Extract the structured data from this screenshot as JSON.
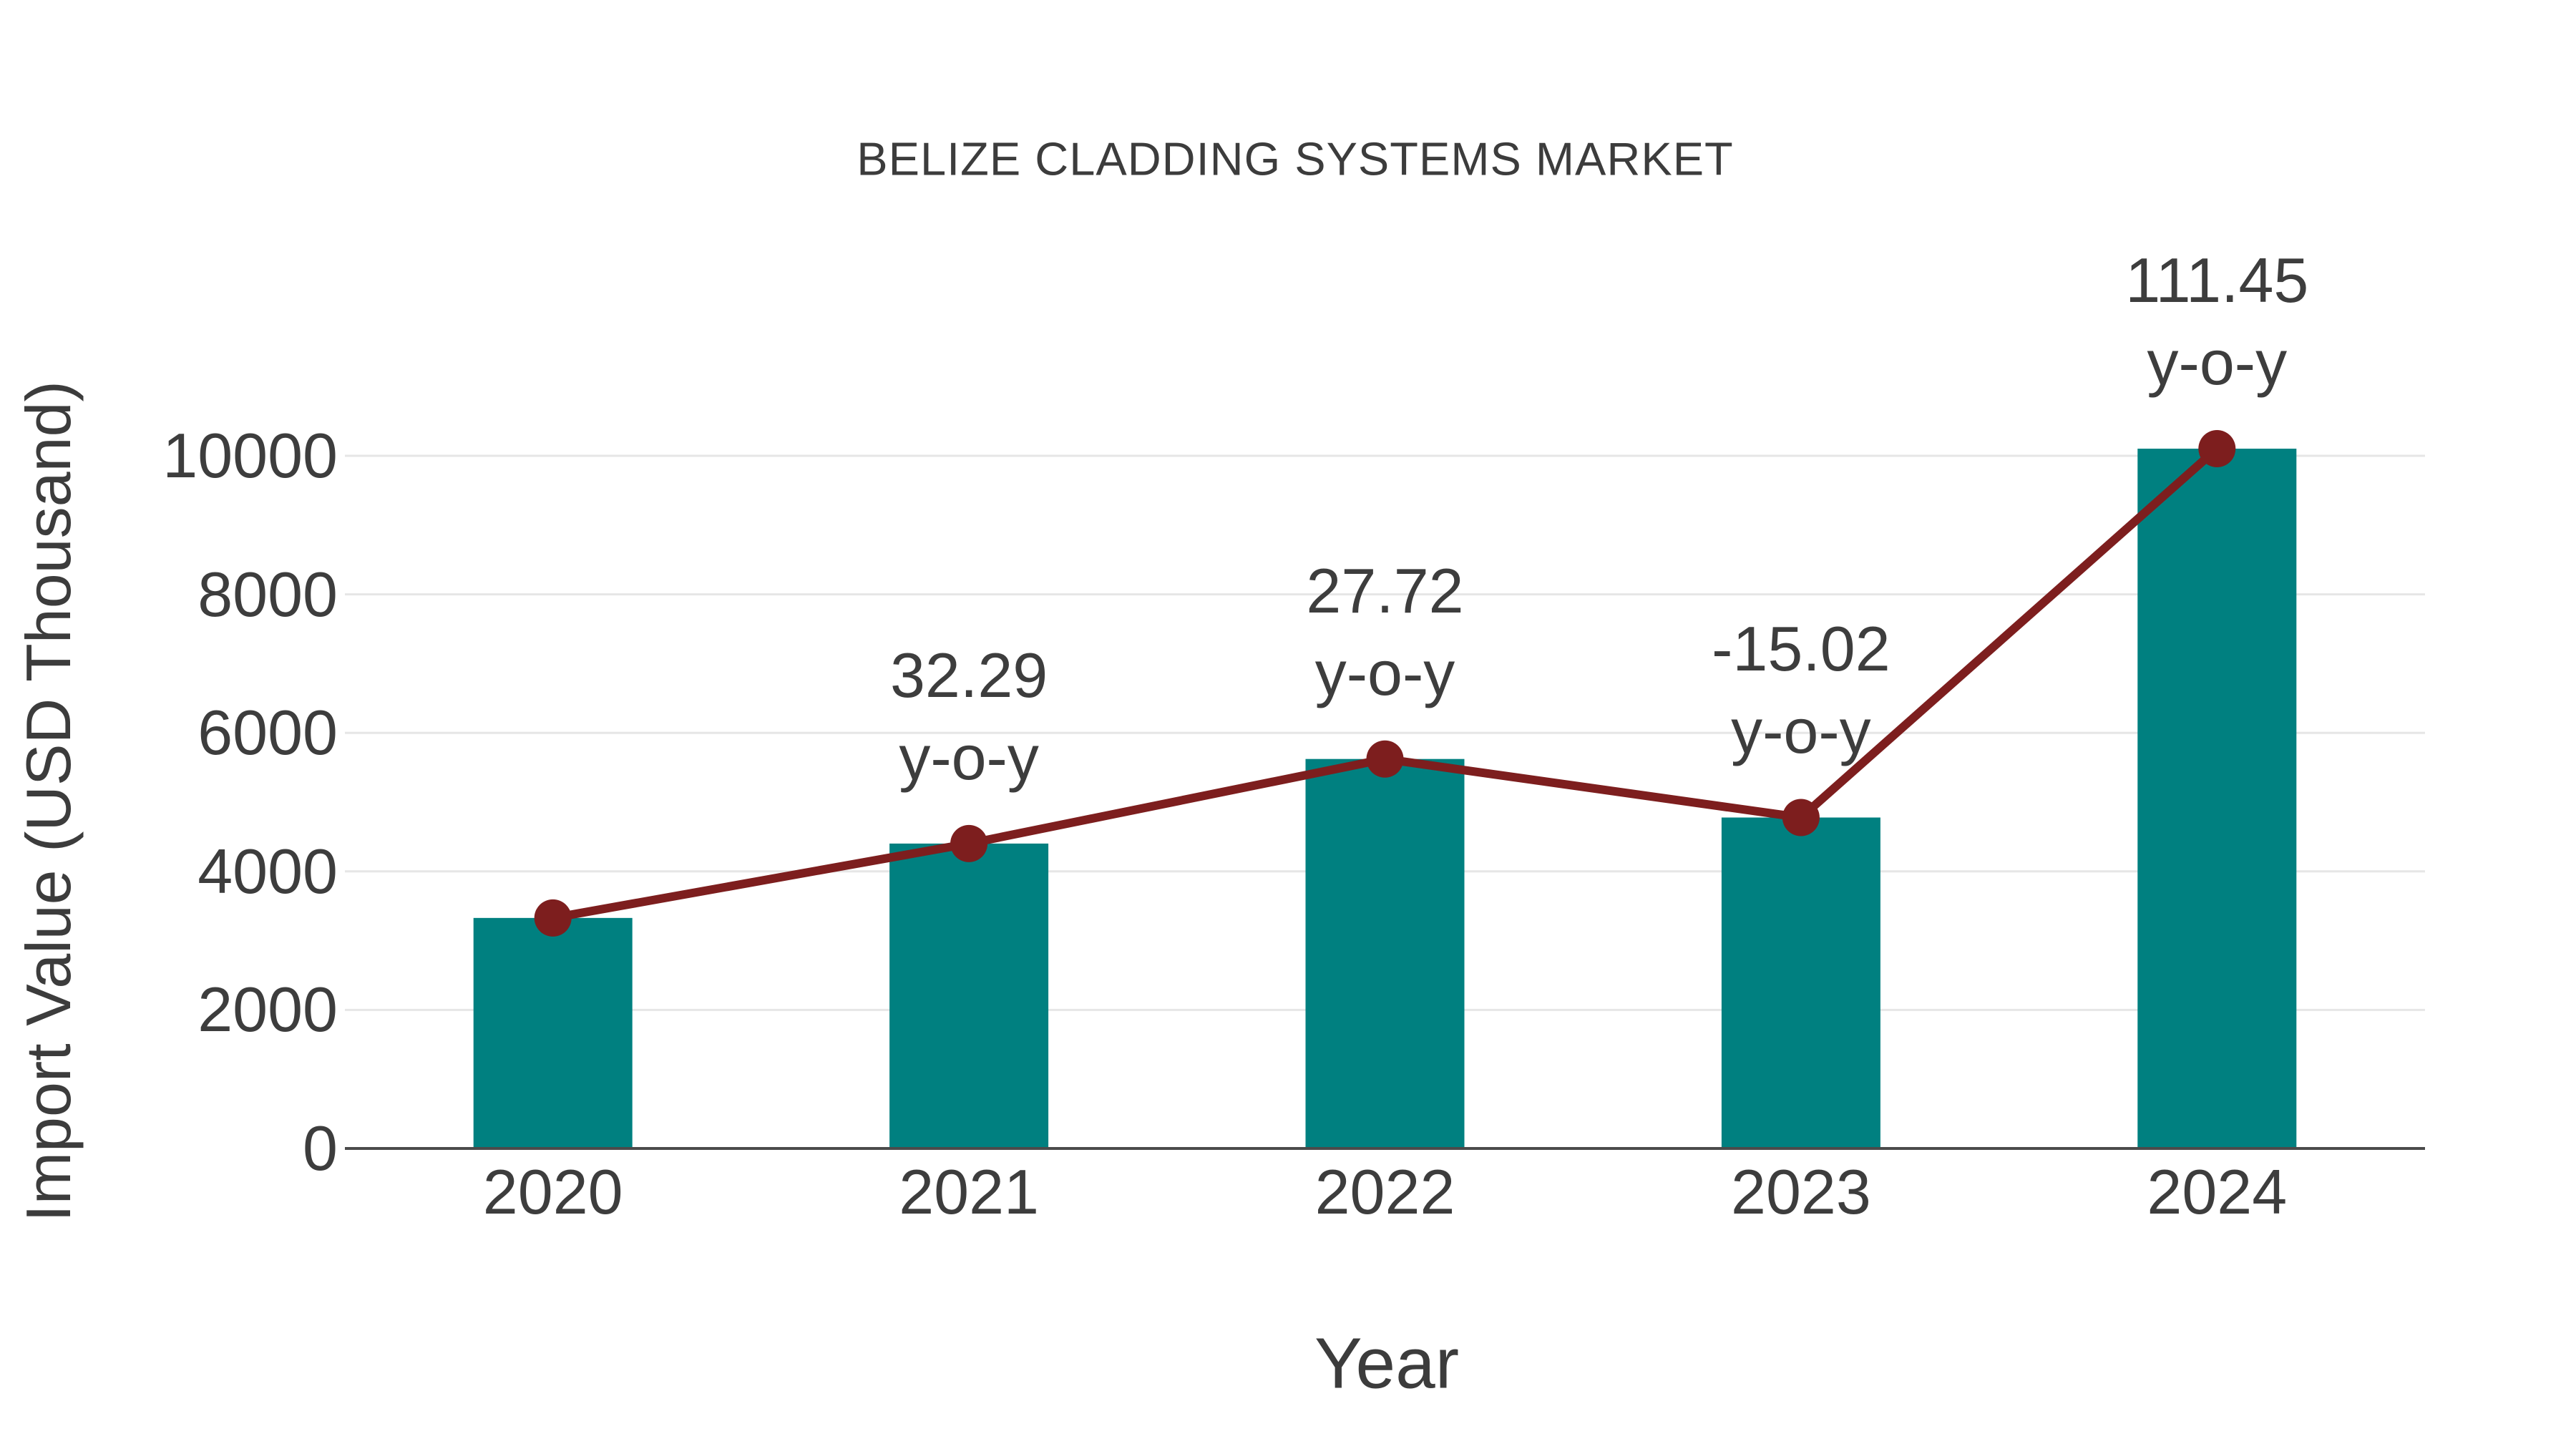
{
  "title": "BELIZE CLADDING SYSTEMS MARKET",
  "colors": {
    "bar": "#008080",
    "line": "#7d1e1e",
    "marker": "#7d1e1e",
    "text": "#3d3d3d",
    "grid": "#e6e6e6",
    "axis": "#4b4b4b",
    "background": "#ffffff"
  },
  "chart_data": {
    "type": "bar",
    "title": "BELIZE CLADDING SYSTEMS MARKET",
    "xlabel": "Year",
    "ylabel": "Import Value (USD Thousand)",
    "categories": [
      "2020",
      "2021",
      "2022",
      "2023",
      "2024"
    ],
    "series": [
      {
        "name": "Import Value",
        "type": "bar",
        "values": [
          3328,
          4402,
          5623,
          4778,
          10103
        ]
      },
      {
        "name": "y-o-y trend",
        "type": "line",
        "values": [
          3328,
          4402,
          5623,
          4778,
          10103
        ]
      }
    ],
    "annotations": [
      {
        "category": "2021",
        "line1": "32.29",
        "line2": "y-o-y"
      },
      {
        "category": "2022",
        "line1": "27.72",
        "line2": "y-o-y"
      },
      {
        "category": "2023",
        "line1": "-15.02",
        "line2": "y-o-y"
      },
      {
        "category": "2024",
        "line1": "111.45",
        "line2": "y-o-y"
      }
    ],
    "ylim": [
      0,
      10000
    ],
    "yticks": [
      0,
      2000,
      4000,
      6000,
      8000,
      10000
    ],
    "grid": "horizontal",
    "legend": "none"
  }
}
